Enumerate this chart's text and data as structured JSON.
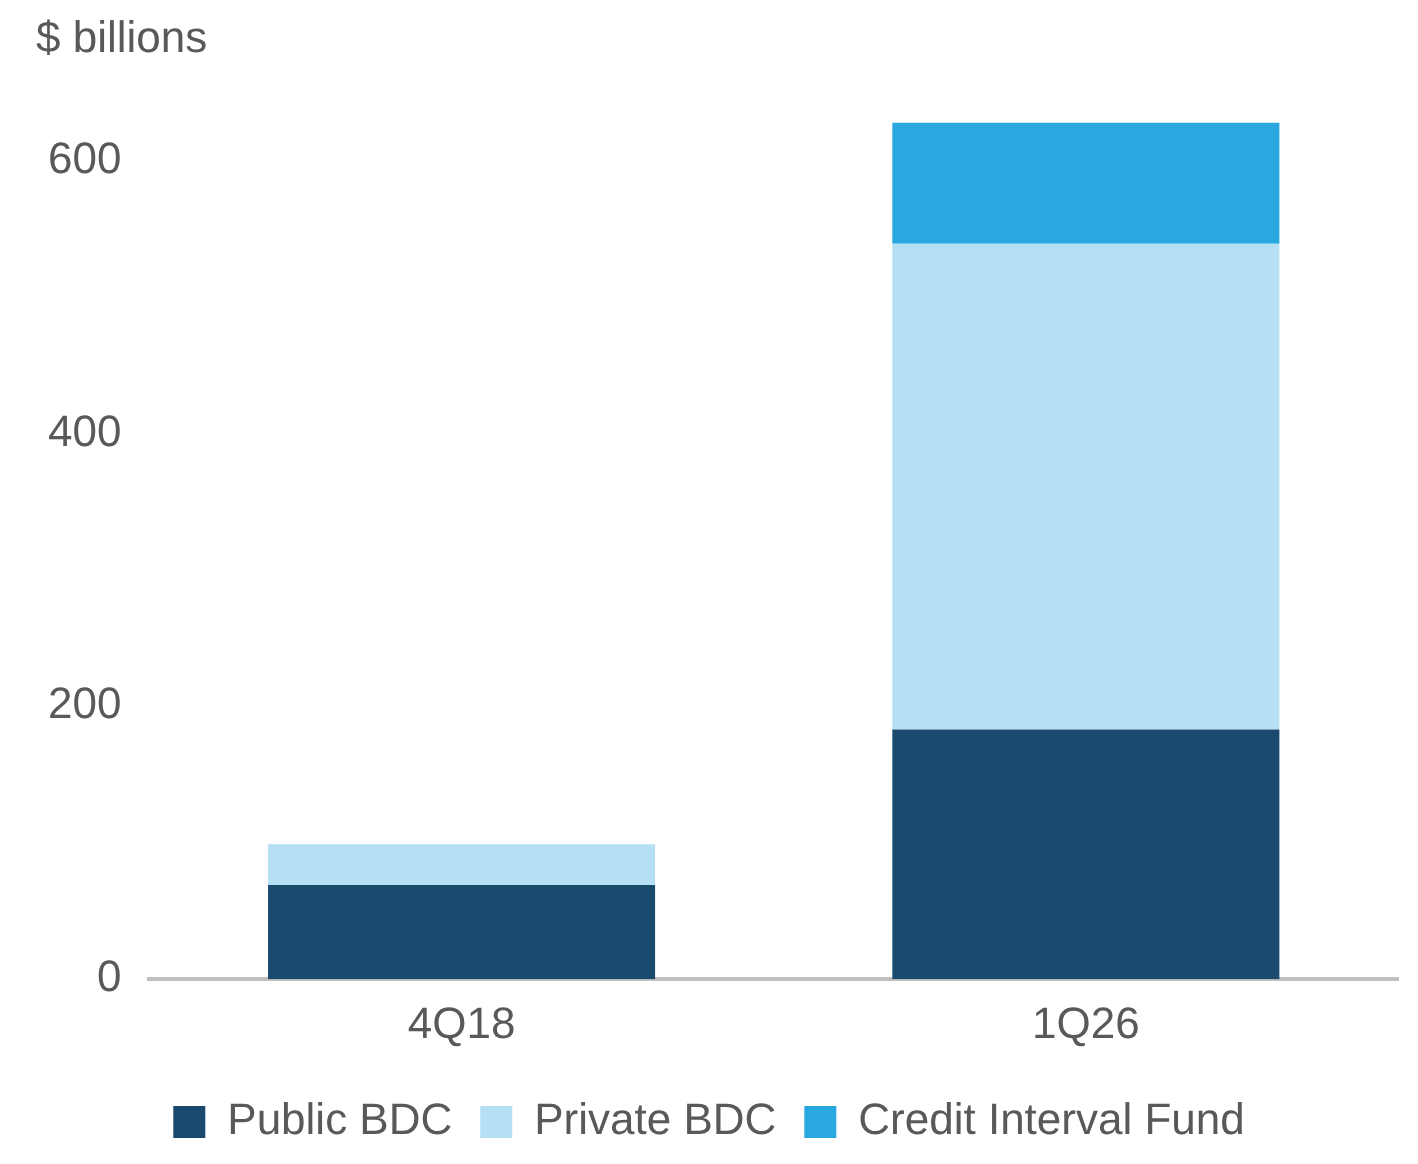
{
  "chart_data": {
    "type": "bar",
    "ylabel": "$ billions",
    "categories": [
      "4Q18",
      "1Q26"
    ],
    "stacked": true,
    "series": [
      {
        "name": "Public BDC",
        "color": "#1a4a6e",
        "values": [
          69,
          183
        ]
      },
      {
        "name": "Private BDC",
        "color": "#b5dff5",
        "values": [
          30,
          356
        ]
      },
      {
        "name": "Credit Interval Fund",
        "color": "#29a8e0",
        "values": [
          0,
          89
        ]
      }
    ],
    "ylim": [
      0,
      628
    ],
    "yticks": [
      0,
      200,
      400,
      600
    ],
    "grid": false,
    "legend": "bottom"
  }
}
